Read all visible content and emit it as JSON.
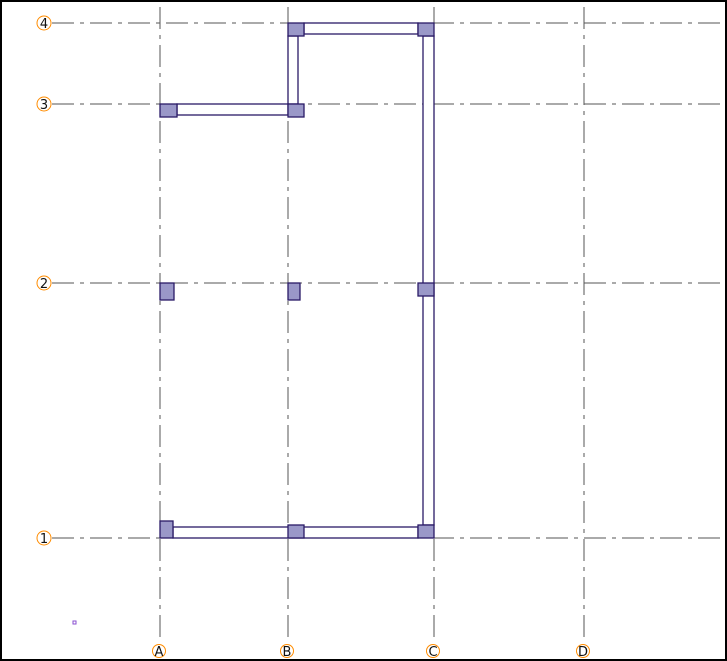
{
  "grid": {
    "vertical_axes": [
      "A",
      "B",
      "C",
      "D"
    ],
    "horizontal_axes": [
      "4",
      "3",
      "2",
      "1"
    ],
    "bubble_color": "#ff8c00",
    "axis_line_color": "#555555"
  },
  "structure": {
    "wall_color": "#2a1a66",
    "column_fill": "#9a98c8",
    "columns": [
      "4B",
      "4C",
      "3A",
      "3B",
      "2A",
      "2B",
      "2C",
      "1A",
      "1B",
      "1C"
    ]
  }
}
